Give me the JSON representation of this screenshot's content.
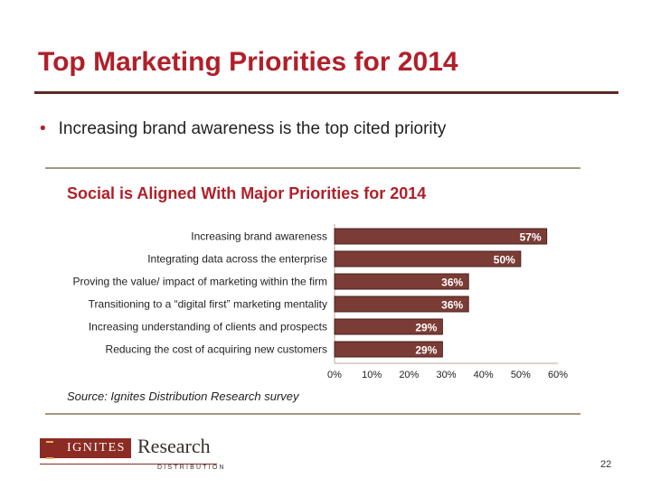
{
  "slide": {
    "title": "Top Marketing Priorities for 2014",
    "bullet": "Increasing brand awareness is the top cited priority",
    "page_number": "22"
  },
  "logo": {
    "brand": "IGNITES",
    "brand_secondary": "Research",
    "tagline": "DISTRIBUTION"
  },
  "colors": {
    "title": "#b0202a",
    "bar_fill": "#7b3c36",
    "bar_stroke": "#4a1f1b",
    "rule": "#a89680"
  },
  "chart_data": {
    "type": "bar",
    "orientation": "horizontal",
    "title": "Social is Aligned With Major Priorities for 2014",
    "categories": [
      "Increasing brand awareness",
      "Integrating data across the enterprise",
      "Proving the value/ impact of marketing within the firm",
      "Transitioning to a “digital first” marketing mentality",
      "Increasing understanding of clients and prospects",
      "Reducing the cost of acquiring new customers"
    ],
    "values": [
      57,
      50,
      36,
      36,
      29,
      29
    ],
    "value_labels": [
      "57%",
      "50%",
      "36%",
      "36%",
      "29%",
      "29%"
    ],
    "xlim": [
      0,
      60
    ],
    "xticks": [
      "0%",
      "10%",
      "20%",
      "30%",
      "40%",
      "50%",
      "60%"
    ],
    "xlabel": "",
    "ylabel": "",
    "grid": false,
    "source": "Source: Ignites Distribution Research survey"
  }
}
